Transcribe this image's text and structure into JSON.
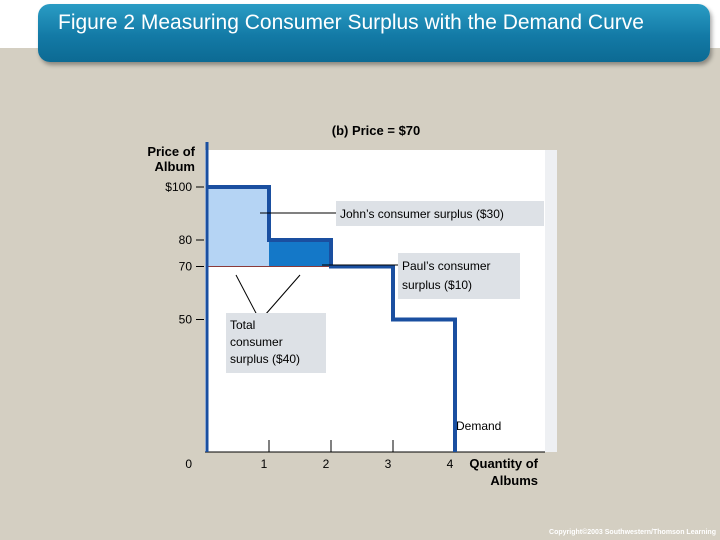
{
  "slide": {
    "title": "Figure 2 Measuring Consumer Surplus with the Demand Curve",
    "copyright": "Copyright©2003 Southwestern/Thomson Learning"
  },
  "chart_data": {
    "type": "line",
    "title": "(b) Price = $70",
    "ylabel": "Price of Album",
    "xlabel": "Quantity of Albums",
    "ylim": [
      0,
      100
    ],
    "xlim": [
      0,
      4
    ],
    "y_ticks": [
      {
        "value": 100,
        "label": "$100"
      },
      {
        "value": 80,
        "label": "80"
      },
      {
        "value": 70,
        "label": "70"
      },
      {
        "value": 50,
        "label": "50"
      },
      {
        "value": 0,
        "label": "0"
      }
    ],
    "x_ticks": [
      {
        "value": 1,
        "label": "1"
      },
      {
        "value": 2,
        "label": "2"
      },
      {
        "value": 3,
        "label": "3"
      },
      {
        "value": 4,
        "label": "4"
      }
    ],
    "series": [
      {
        "name": "Demand",
        "x": [
          0,
          1,
          1,
          2,
          2,
          3,
          3,
          4,
          4
        ],
        "y": [
          100,
          100,
          80,
          80,
          70,
          70,
          50,
          50,
          0
        ]
      }
    ],
    "price": 70,
    "surplus_regions": [
      {
        "x0": 0,
        "x1": 1,
        "y0": 70,
        "y1": 100,
        "color": "#b5d4f4"
      },
      {
        "x0": 1,
        "x1": 2,
        "y0": 70,
        "y1": 80,
        "color": "#1478c8"
      }
    ],
    "annotations": {
      "john": "John’s consumer surplus ($30)",
      "paul_line1": "Paul’s consumer",
      "paul_line2": "surplus ($10)",
      "total_line1": "Total",
      "total_line2": "consumer",
      "total_line3": "surplus ($40)",
      "demand": "Demand"
    },
    "colors": {
      "demand": "#1a4fa0",
      "price_line": "#8b3a3a",
      "plot_bg": "#ffffff",
      "label_box": "#dde1e6"
    }
  }
}
